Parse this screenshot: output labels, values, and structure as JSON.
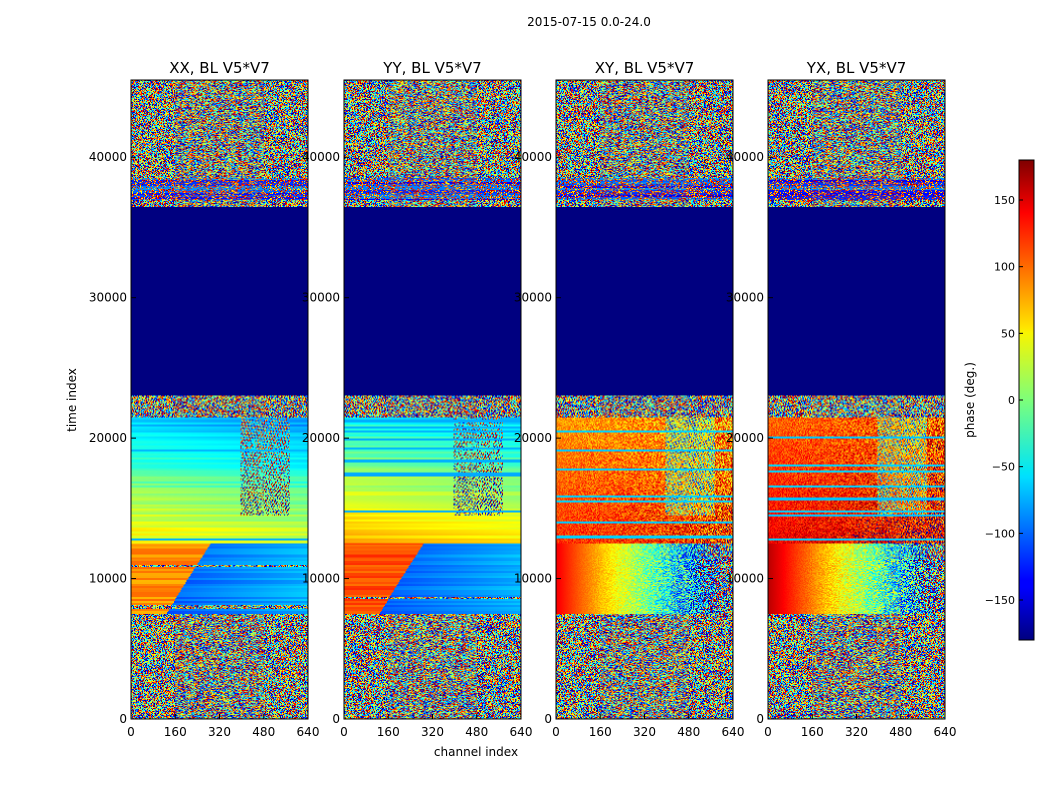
{
  "chart_data": {
    "type": "heatmap",
    "suptitle": "2015-07-15 0.0-24.0",
    "xlabel": "channel index",
    "ylabel": "time index",
    "xlim": [
      0,
      640
    ],
    "ylim": [
      0,
      45500
    ],
    "xticks": [
      0,
      160,
      320,
      480,
      640
    ],
    "yticks": [
      0,
      10000,
      20000,
      30000,
      40000
    ],
    "panels": [
      {
        "title": "XX, BL V5*V7",
        "kind": "parallel"
      },
      {
        "title": "YY, BL V5*V7",
        "kind": "parallel"
      },
      {
        "title": "XY, BL V5*V7",
        "kind": "cross"
      },
      {
        "title": "YX, BL V5*V7",
        "kind": "cross"
      }
    ],
    "colorbar": {
      "label": "phase (deg.)",
      "range": [
        -180,
        180
      ],
      "ticks": [
        -150,
        -100,
        -50,
        0,
        50,
        100,
        150
      ],
      "colormap": "jet"
    },
    "regions": [
      {
        "name": "noise-low",
        "from": 0,
        "to": 7500,
        "pattern": "noise"
      },
      {
        "name": "gradient-1",
        "from": 7500,
        "to": 12500,
        "pattern": "phase-wrap"
      },
      {
        "name": "gradient-2",
        "from": 12500,
        "to": 21500,
        "pattern": "bands"
      },
      {
        "name": "flagged",
        "from": 23000,
        "to": 36500,
        "value": -180
      },
      {
        "name": "noise-high",
        "from": 36500,
        "to": 45500,
        "pattern": "noise"
      }
    ]
  }
}
